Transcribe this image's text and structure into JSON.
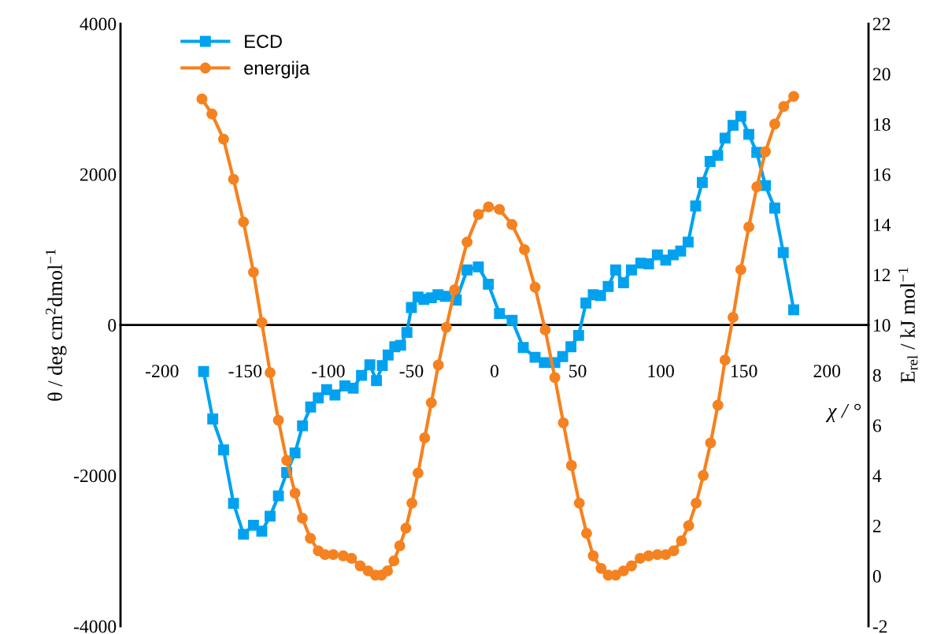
{
  "chart_data": {
    "type": "line",
    "xlabel": "χ / °",
    "ylabel": "θ / deg cm$^{2}$dmol$^{−1}$",
    "y2label": "E$_{rel}$ / kJ mol$^{−1}$",
    "xlim": [
      -225,
      225
    ],
    "xticks": [
      -200,
      -150,
      -100,
      -50,
      0,
      50,
      100,
      150,
      200
    ],
    "ylim": [
      -4000,
      4000
    ],
    "yticks": [
      -4000,
      -2000,
      0,
      2000,
      4000
    ],
    "y2lim": [
      -2,
      22
    ],
    "y2ticks": [
      -2,
      0,
      2,
      4,
      6,
      8,
      10,
      12,
      14,
      16,
      18,
      20,
      22
    ],
    "grid": false,
    "legend": "top left",
    "line_style": "solid",
    "series": [
      {
        "name": "ECD",
        "color": "#00a2f0",
        "marker": "square",
        "x": [
          -175,
          -169.5,
          -163,
          -157,
          -151,
          -145,
          -140,
          -135,
          -130,
          -125,
          -120,
          -115.5,
          -110.6,
          -106,
          -101,
          -96,
          -90,
          -85,
          -80,
          -75,
          -71,
          -67.5,
          -64,
          -60,
          -56.5,
          -52.7,
          -50,
          -46,
          -42.5,
          -38,
          -34,
          -29.5,
          -23,
          -16.5,
          -9.7,
          -3.7,
          3,
          10.6,
          17.3,
          24.4,
          30,
          36.3,
          41,
          46,
          50.6,
          55,
          59.4,
          63.8,
          68.4,
          72.9,
          77.6,
          82.4,
          88,
          92.7,
          98,
          103,
          107.5,
          112,
          116.5,
          121,
          125,
          129.7,
          134.3,
          138.7,
          143.5,
          148.2,
          153,
          157.8,
          163,
          168.6,
          173.7,
          180
        ],
        "values": [
          -620,
          -1250,
          -1660,
          -2370,
          -2780,
          -2660,
          -2740,
          -2540,
          -2270,
          -1960,
          -1700,
          -1340,
          -1090,
          -970,
          -860,
          -930,
          -810,
          -840,
          -670,
          -530,
          -740,
          -540,
          -400,
          -290,
          -270,
          -100,
          230,
          370,
          340,
          360,
          400,
          380,
          330,
          730,
          770,
          540,
          150,
          60,
          -300,
          -430,
          -500,
          -500,
          -420,
          -290,
          -140,
          290,
          400,
          390,
          510,
          730,
          560,
          730,
          820,
          810,
          930,
          860,
          930,
          980,
          1100,
          1580,
          1890,
          2170,
          2250,
          2480,
          2650,
          2770,
          2530,
          2290,
          1850,
          1550,
          960,
          200
        ]
      },
      {
        "name": "energija",
        "color": "#f58220",
        "marker": "circle",
        "axis": "y2",
        "x": [
          -176,
          -170,
          -163,
          -157,
          -151,
          -145,
          -140,
          -135,
          -130,
          -125,
          -120,
          -115.6,
          -110.8,
          -106,
          -102,
          -97,
          -91,
          -86,
          -80.8,
          -76,
          -71.6,
          -68,
          -64.4,
          -60.5,
          -57,
          -53.3,
          -49.7,
          -46,
          -42,
          -38,
          -33.8,
          -29,
          -24,
          -16.5,
          -9.7,
          -3.6,
          3,
          10.5,
          18,
          24.4,
          30.5,
          36.3,
          41.4,
          46.3,
          51,
          55.4,
          59.4,
          64.1,
          68.4,
          72.9,
          77.6,
          82.4,
          87.6,
          92.7,
          98,
          103,
          107.8,
          112.5,
          116.8,
          121.3,
          125.6,
          130,
          134.4,
          138.7,
          143.5,
          148.2,
          153,
          157.8,
          163,
          168.6,
          174,
          180
        ],
        "values": [
          19.0,
          18.4,
          17.4,
          15.8,
          14.1,
          12.1,
          10.1,
          8.1,
          6.2,
          4.6,
          3.3,
          2.3,
          1.5,
          1.0,
          0.85,
          0.85,
          0.8,
          0.7,
          0.4,
          0.2,
          0.03,
          0.03,
          0.2,
          0.6,
          1.2,
          1.9,
          2.9,
          4.1,
          5.5,
          6.9,
          8.4,
          9.9,
          11.4,
          13.3,
          14.4,
          14.7,
          14.6,
          14.0,
          13.0,
          11.5,
          9.8,
          7.9,
          6.1,
          4.4,
          2.9,
          1.7,
          0.8,
          0.3,
          0.03,
          0.03,
          0.2,
          0.4,
          0.7,
          0.8,
          0.85,
          0.85,
          1.0,
          1.4,
          2.0,
          2.9,
          4.0,
          5.3,
          6.8,
          8.6,
          10.3,
          12.2,
          13.9,
          15.5,
          16.9,
          18.0,
          18.7,
          19.1
        ]
      }
    ]
  }
}
